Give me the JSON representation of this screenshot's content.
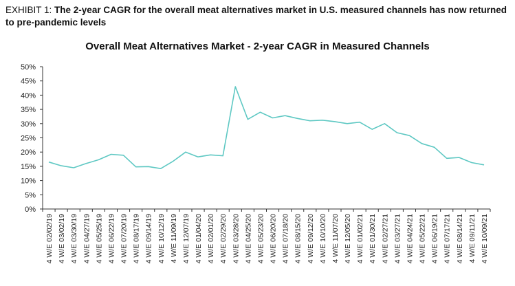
{
  "exhibit": {
    "label": "EXHIBIT 1:",
    "text": "The 2-year CAGR for the overall meat alternatives market in U.S. measured channels has now returned to pre-pandemic levels"
  },
  "chart_data": {
    "type": "line",
    "title": "Overall Meat Alternatives Market - 2-year CAGR in Measured Channels",
    "xlabel": "",
    "ylabel": "",
    "ylim": [
      0,
      50
    ],
    "yticks": [
      "0%",
      "5%",
      "10%",
      "15%",
      "20%",
      "25%",
      "30%",
      "35%",
      "40%",
      "45%",
      "50%"
    ],
    "line_color": "#5ec8c3",
    "categories": [
      "4 W/E 02/02/19",
      "4 W/E 03/02/19",
      "4 W/E 03/30/19",
      "4 W/E 04/27/19",
      "4 W/E 05/25/19",
      "4 W/E 06/22/19",
      "4 W/E 07/20/19",
      "4 W/E 08/17/19",
      "4 W/E 09/14/19",
      "4 W/E 10/12/19",
      "4 W/E 11/09/19",
      "4 W/E 12/07/19",
      "4 W/E 01/04/20",
      "4 W/E 02/01/20",
      "4 W/E 02/29/20",
      "4 W/E 03/28/20",
      "4 W/E 04/25/20",
      "4 W/E 05/23/20",
      "4 W/E 06/20/20",
      "4 W/E 07/18/20",
      "4 W/E 08/15/20",
      "4 W/E 09/12/20",
      "4 W/E 10/10/20",
      "4 W/E 11/07/20",
      "4 W/E 12/05/20",
      "4 W/E 01/02/21",
      "4 W/E 01/30/21",
      "4 W/E 02/27/21",
      "4 W/E 03/27/21",
      "4 W/E 04/24/21",
      "4 W/E 05/22/21",
      "4 W/E 06/19/21",
      "4 W/E 07/17/21",
      "4 W/E 08/14/21",
      "4 W/E 09/11/21",
      "4 W/E 10/09/21"
    ],
    "series": [
      {
        "name": "2-year CAGR",
        "values": [
          16.5,
          15.2,
          14.5,
          16.0,
          17.3,
          19.2,
          18.9,
          14.8,
          14.9,
          14.2,
          16.8,
          20.0,
          18.3,
          19.0,
          18.7,
          43.0,
          31.5,
          34.0,
          32.0,
          32.8,
          31.8,
          31.0,
          31.2,
          30.7,
          30.0,
          30.5,
          28.0,
          30.0,
          26.8,
          25.8,
          23.0,
          21.7,
          17.8,
          18.1,
          16.3,
          15.5
        ]
      }
    ]
  }
}
